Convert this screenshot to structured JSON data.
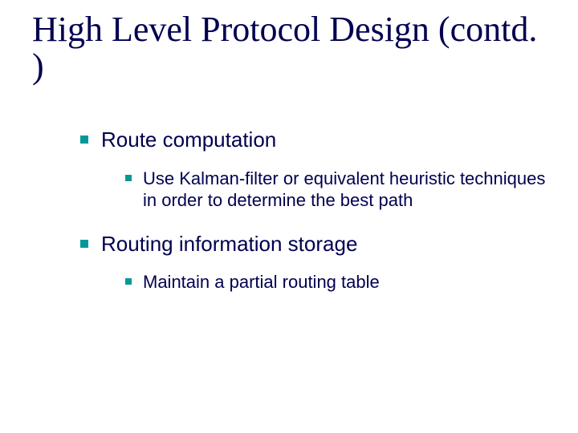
{
  "title": "High Level Protocol Design (contd. )",
  "colors": {
    "text": "#000050",
    "bullet": "#009999",
    "background": "#ffffff"
  },
  "fonts": {
    "title_family": "Times New Roman",
    "body_family": "Verdana",
    "title_size_pt": 44,
    "lvl1_size_pt": 26,
    "lvl2_size_pt": 22
  },
  "items": [
    {
      "label": "Route computation",
      "children": [
        {
          "label": "Use Kalman-filter or equivalent heuristic techniques in order to determine the best path"
        }
      ]
    },
    {
      "label": "Routing information storage",
      "children": [
        {
          "label": "Maintain a partial routing table"
        }
      ]
    }
  ]
}
